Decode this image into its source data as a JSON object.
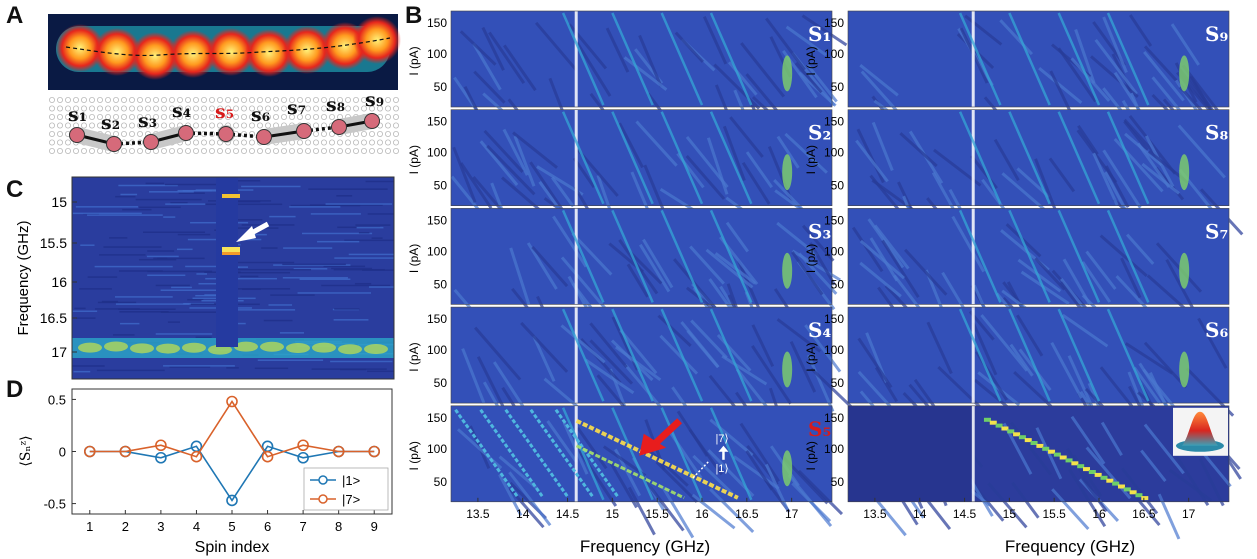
{
  "figure": {
    "panel_letters": [
      "A",
      "B",
      "C",
      "D"
    ]
  },
  "panel_a": {
    "spin_labels": [
      "s₁",
      "s₂",
      "s₃",
      "s₄",
      "s₅",
      "s₆",
      "s₇",
      "s₈",
      "s₉"
    ],
    "highlight_color": "#d81b1b"
  },
  "panel_b": {
    "left_column_labels": [
      "S₁",
      "S₂",
      "S₃",
      "S₄",
      "S₅"
    ],
    "right_column_labels": [
      "S₉",
      "S₈",
      "S₇",
      "S₆"
    ],
    "ylabel": "I (pA)",
    "yticks": [
      "150",
      "100",
      "50"
    ],
    "xticks": [
      "13.5",
      "14",
      "14.5",
      "15",
      "15.5",
      "16",
      "16.5",
      "17"
    ],
    "xlabel": "Frequency (GHz)",
    "annotation_top": "|7⟩",
    "annotation_bottom": "|1⟩"
  },
  "panel_c": {
    "ylabel": "Frequency (GHz)",
    "yticks": [
      "15",
      "15.5",
      "16",
      "16.5",
      "17"
    ]
  },
  "panel_d": {
    "ylabel": "⟨Sₙᶻ⟩",
    "xlabel": "Spin index",
    "yticks": [
      "0.5",
      "0",
      "-0.5"
    ],
    "xticks": [
      "1",
      "2",
      "3",
      "4",
      "5",
      "6",
      "7",
      "8",
      "9"
    ],
    "legend": [
      "|1>",
      "|7>"
    ]
  },
  "chart_data": {
    "type": "line",
    "x": [
      1,
      2,
      3,
      4,
      5,
      6,
      7,
      8,
      9
    ],
    "series": [
      {
        "name": "|1>",
        "color": "#1f77b4",
        "values": [
          0.0,
          0.0,
          -0.06,
          0.05,
          -0.47,
          0.05,
          -0.06,
          0.0,
          0.0
        ]
      },
      {
        "name": "|7>",
        "color": "#d9622b",
        "values": [
          0.0,
          0.0,
          0.06,
          -0.05,
          0.48,
          -0.05,
          0.06,
          0.0,
          0.0
        ]
      }
    ],
    "xlabel": "Spin index",
    "ylabel": "⟨Sₙᶻ⟩",
    "xlim": [
      0.5,
      9.5
    ],
    "ylim": [
      -0.6,
      0.6
    ],
    "grid": false,
    "legend_position": "bottom-right"
  }
}
